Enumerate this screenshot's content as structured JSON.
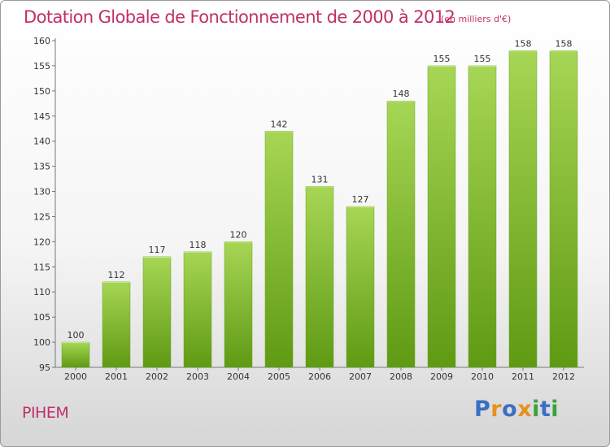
{
  "title": "Dotation Globale de Fonctionnement de 2000 à 2012",
  "subtitle": "(en milliers d'€)",
  "commune": "PIHEM",
  "logo": {
    "text": "Proxiti",
    "letters": [
      "P",
      "r",
      "o",
      "x",
      "i",
      "t",
      "i"
    ],
    "colors": [
      "#3a6fc4",
      "#e8901e",
      "#3a6fc4",
      "#e8901e",
      "#3aa33a",
      "#3a6fc4",
      "#3aa33a"
    ]
  },
  "colors": {
    "title": "#c0306a",
    "bar_light": "#a6d655",
    "bar_dark": "#5f9a13"
  },
  "chart_data": {
    "type": "bar",
    "categories": [
      "2000",
      "2001",
      "2002",
      "2003",
      "2004",
      "2005",
      "2006",
      "2007",
      "2008",
      "2009",
      "2010",
      "2011",
      "2012"
    ],
    "values": [
      100,
      112,
      117,
      118,
      120,
      142,
      131,
      127,
      148,
      155,
      155,
      158,
      158
    ],
    "ylim": [
      95,
      160
    ],
    "yticks": [
      95,
      100,
      105,
      110,
      115,
      120,
      125,
      130,
      135,
      140,
      145,
      150,
      155,
      160
    ],
    "grid": false,
    "title": "Dotation Globale de Fonctionnement de 2000 à 2012",
    "subtitle": "(en milliers d'€)",
    "xlabel": "",
    "ylabel": ""
  }
}
